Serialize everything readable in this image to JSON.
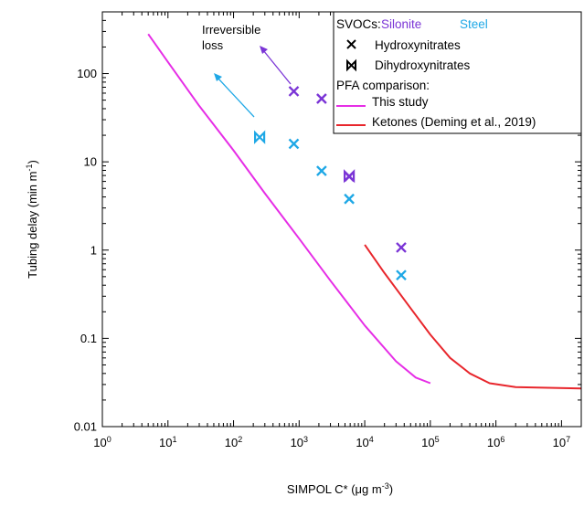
{
  "chart_data": {
    "type": "scatter",
    "xlabel": "SIMPOL C* (μg m",
    "xlabel_sup": "-3",
    "xlabel_end": ")",
    "ylabel": "Tubing delay (min m",
    "ylabel_sup": "-1",
    "ylabel_end": ")",
    "xscale": "log",
    "yscale": "log",
    "xlim": [
      1,
      20000000
    ],
    "ylim": [
      0.01,
      500
    ],
    "x_ticks": [
      {
        "value": 1,
        "base": "10",
        "exp": "0"
      },
      {
        "value": 10,
        "base": "10",
        "exp": "1"
      },
      {
        "value": 100,
        "base": "10",
        "exp": "2"
      },
      {
        "value": 1000,
        "base": "10",
        "exp": "3"
      },
      {
        "value": 10000,
        "base": "10",
        "exp": "4"
      },
      {
        "value": 100000,
        "base": "10",
        "exp": "5"
      },
      {
        "value": 1000000,
        "base": "10",
        "exp": "6"
      },
      {
        "value": 10000000,
        "base": "10",
        "exp": "7"
      }
    ],
    "y_ticks": [
      {
        "value": 0.01,
        "label": "0.01"
      },
      {
        "value": 0.1,
        "label": "0.1"
      },
      {
        "value": 1,
        "label": "1"
      },
      {
        "value": 10,
        "label": "10"
      },
      {
        "value": 100,
        "label": "100"
      }
    ],
    "colors": {
      "silonite": "#7b35d6",
      "steel": "#1fa8e6",
      "this_study": "#e62ee6",
      "ketones": "#e8262c"
    },
    "series": [
      {
        "name": "Silonite",
        "kind": "Hydroxynitrates",
        "marker": "x",
        "color": "#7b35d6",
        "points": [
          [
            830,
            63
          ],
          [
            2200,
            52
          ],
          [
            5800,
            6.8
          ],
          [
            36000,
            1.07
          ]
        ]
      },
      {
        "name": "Silonite",
        "kind": "Dihydroxynitrates",
        "marker": "bowtie",
        "color": "#7b35d6",
        "points": [
          [
            5800,
            6.9
          ]
        ]
      },
      {
        "name": "Steel",
        "kind": "Hydroxynitrates",
        "marker": "x",
        "color": "#1fa8e6",
        "points": [
          [
            830,
            16
          ],
          [
            2200,
            7.9
          ],
          [
            5800,
            3.8
          ],
          [
            36000,
            0.52
          ]
        ]
      },
      {
        "name": "Steel",
        "kind": "Dihydroxynitrates",
        "marker": "bowtie",
        "color": "#1fa8e6",
        "points": [
          [
            250,
            19
          ]
        ]
      },
      {
        "name": "This study",
        "kind": "line",
        "color": "#e62ee6",
        "points": [
          [
            5,
            280
          ],
          [
            10,
            135
          ],
          [
            30,
            43
          ],
          [
            100,
            13.5
          ],
          [
            300,
            4.4
          ],
          [
            1000,
            1.35
          ],
          [
            3000,
            0.45
          ],
          [
            10000,
            0.14
          ],
          [
            30000,
            0.055
          ],
          [
            60000,
            0.036
          ],
          [
            100000,
            0.031
          ]
        ]
      },
      {
        "name": "Ketones (Deming et al., 2019)",
        "kind": "line",
        "color": "#e8262c",
        "points": [
          [
            10000,
            1.15
          ],
          [
            20000,
            0.55
          ],
          [
            50000,
            0.22
          ],
          [
            100000,
            0.11
          ],
          [
            200000,
            0.06
          ],
          [
            400000,
            0.04
          ],
          [
            800000,
            0.031
          ],
          [
            2000000,
            0.028
          ],
          [
            20000000,
            0.027
          ]
        ]
      }
    ],
    "legend": {
      "position": "top-right",
      "svocs_label": "SVOCs:",
      "silonite_label": "Silonite",
      "steel_label": "Steel",
      "hydroxy_label": "Hydroxynitrates",
      "dihydroxy_label": "Dihydroxynitrates",
      "pfa_label": "PFA comparison:",
      "this_study_label": "This study",
      "ketones_label": "Ketones (Deming et al., 2019)"
    },
    "annotation": {
      "line1": "Irreversible",
      "line2": "loss"
    }
  }
}
